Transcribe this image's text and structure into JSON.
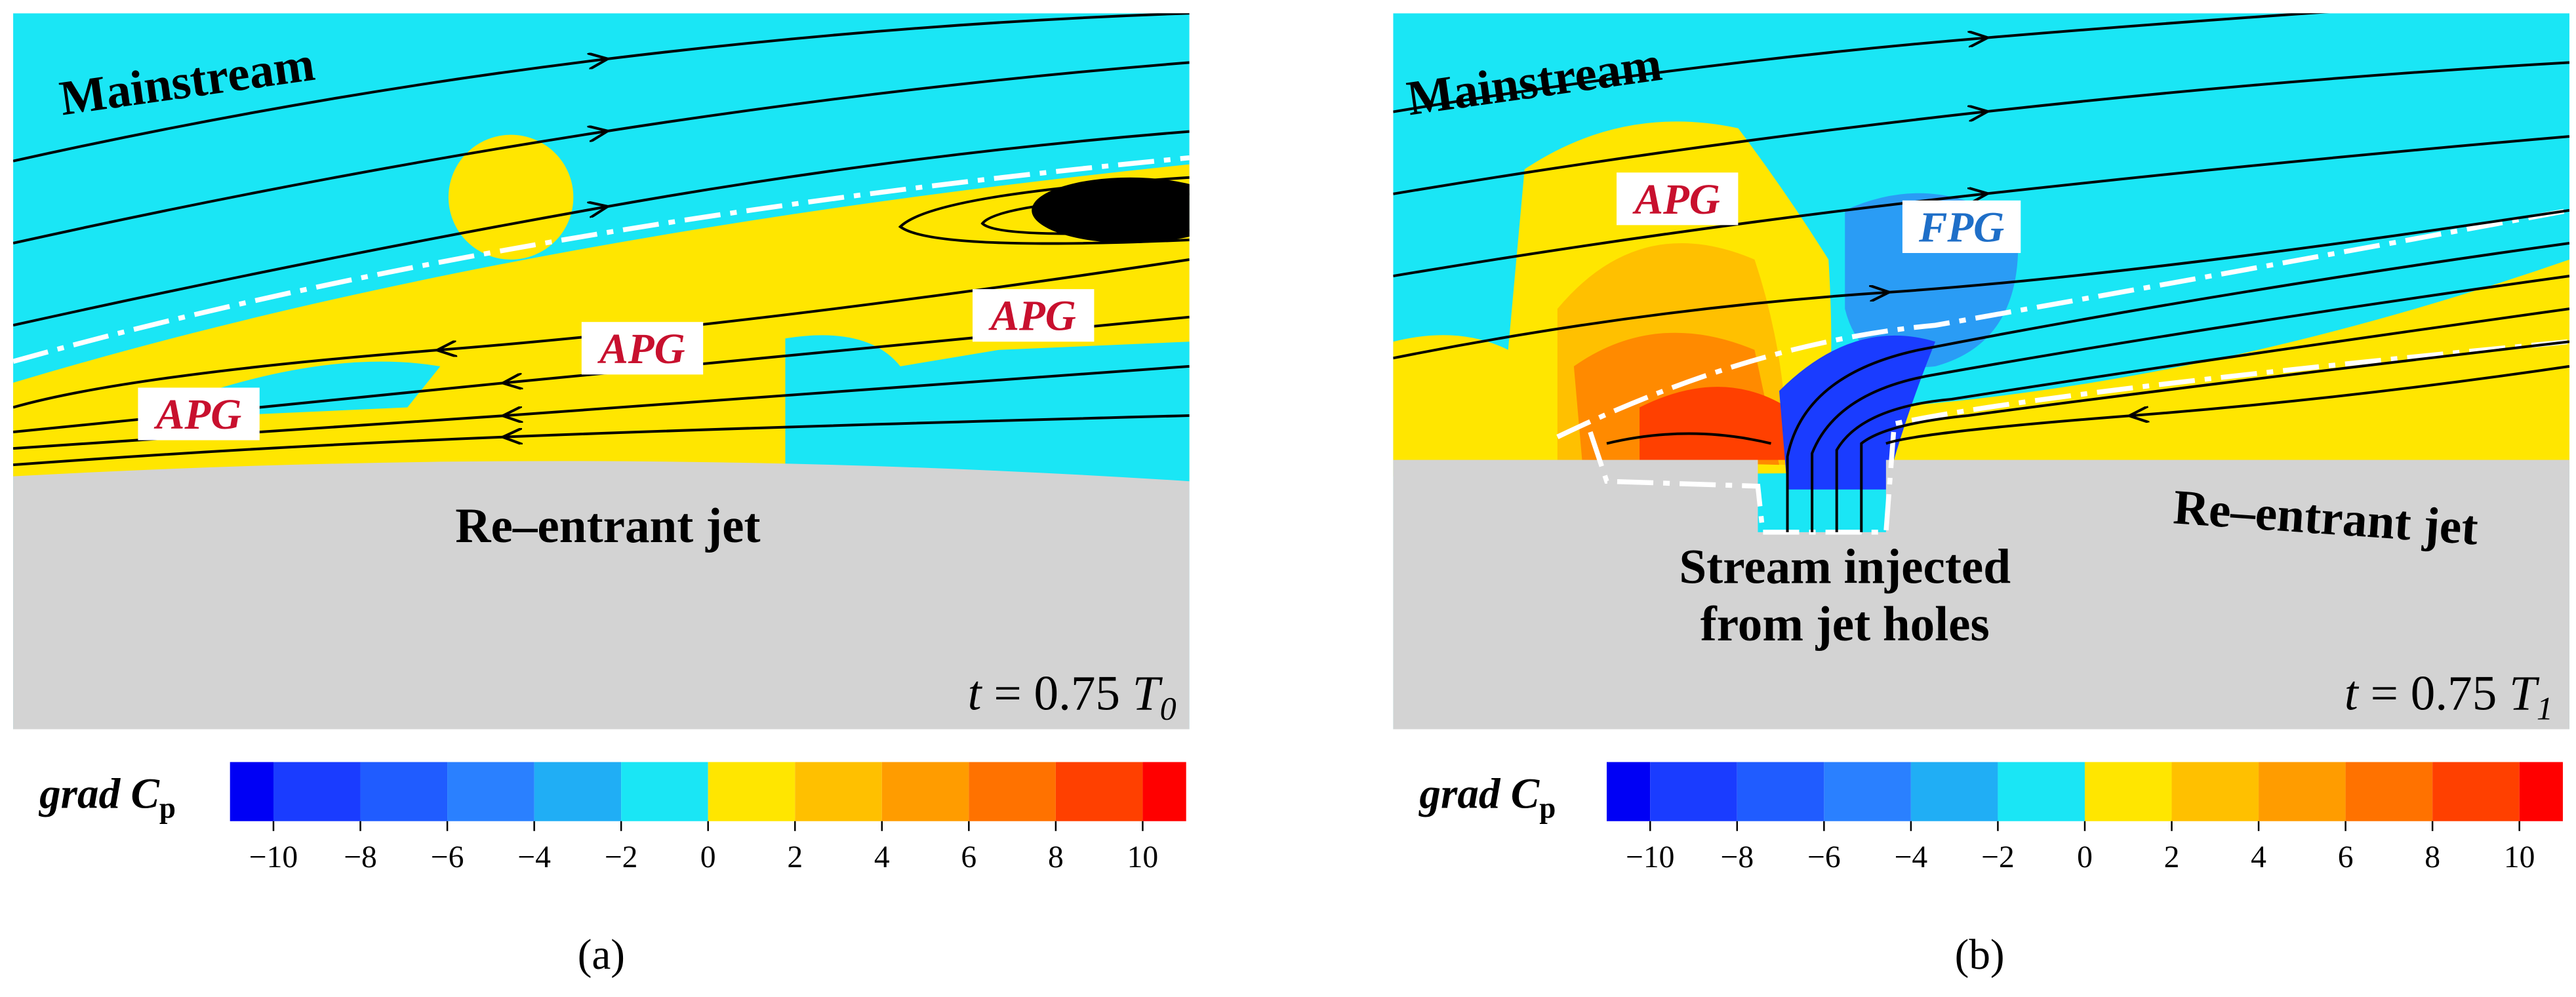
{
  "panels": [
    {
      "label": "(a)",
      "mainstream": "Mainstream",
      "regions": [
        "APG",
        "APG",
        "APG"
      ],
      "wall": "Re–entrant jet",
      "time": {
        "variable": "t",
        "equals": "= 0.75",
        "symbol": "T",
        "subscript": "0"
      }
    },
    {
      "label": "(b)",
      "mainstream": "Mainstream",
      "regions": [
        "APG",
        "FPG"
      ],
      "wall": "Re–entrant jet",
      "jet": [
        "Stream injected",
        "from jet holes"
      ],
      "time": {
        "variable": "t",
        "equals": "= 0.75",
        "symbol": "T",
        "subscript": "1"
      }
    }
  ],
  "colorbar": {
    "grad": "grad",
    "symbol": "C",
    "subscript": "p",
    "lim": [
      -11,
      11
    ],
    "ticks": [
      {
        "value": -10,
        "label": "−10"
      },
      {
        "value": -8,
        "label": "−8"
      },
      {
        "value": -6,
        "label": "−6"
      },
      {
        "value": -4,
        "label": "−4"
      },
      {
        "value": -2,
        "label": "−2"
      },
      0,
      2,
      4,
      6,
      8,
      10
    ],
    "colors": [
      "#0000f5",
      "#1a3cff",
      "#205cff",
      "#2a80ff",
      "#20aef5",
      "#1ae6f5",
      "#ffe600",
      "#ffc000",
      "#ff9c00",
      "#ff7200",
      "#ff4000",
      "#ff0000"
    ]
  }
}
